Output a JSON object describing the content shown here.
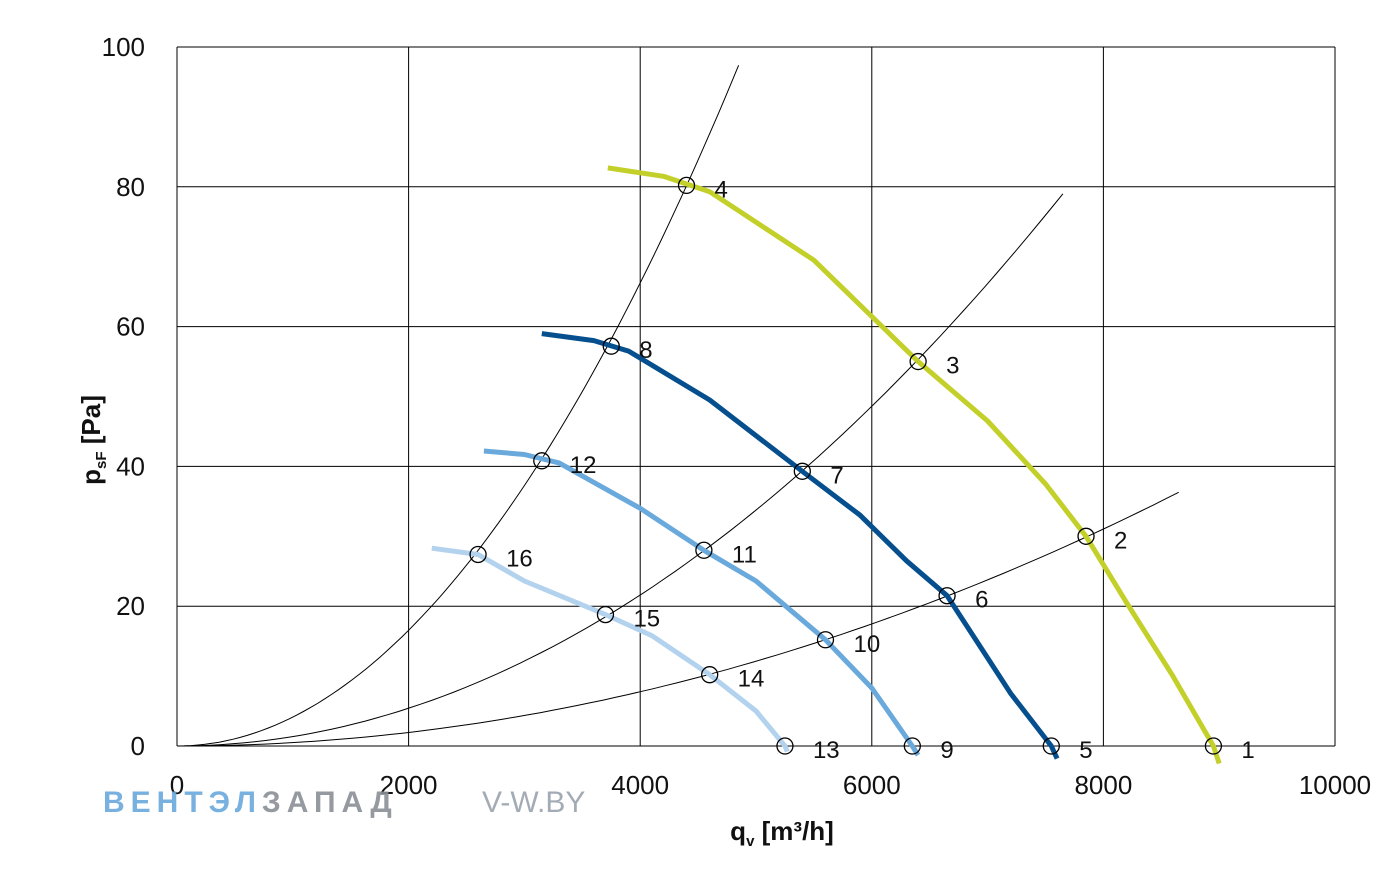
{
  "chart_data": {
    "type": "line",
    "title": "",
    "xlabel": "q",
    "xlabel_sub": "v",
    "xlabel_unit": " [m³/h]",
    "ylabel": "p",
    "ylabel_sub": "sF",
    "ylabel_unit": " [Pa]",
    "xlim": [
      0,
      10000
    ],
    "ylim": [
      0,
      100
    ],
    "xticks": [
      0,
      2000,
      4000,
      6000,
      8000,
      10000
    ],
    "yticks": [
      0,
      20,
      40,
      60,
      80,
      100
    ],
    "grid": true,
    "colors": {
      "fan1": "#c3d02a",
      "fan2": "#054f8e",
      "fan3": "#6aa9dc",
      "fan4": "#b3d2ee",
      "system": "#000000",
      "grid": "#000000"
    },
    "series": [
      {
        "color_key": "fan1",
        "points": [
          [
            3720,
            82.7
          ],
          [
            4200,
            81.5
          ],
          [
            4600,
            79.3
          ],
          [
            5500,
            69.5
          ],
          [
            6400,
            55
          ],
          [
            7000,
            46.5
          ],
          [
            7500,
            37.5
          ],
          [
            7850,
            30
          ],
          [
            8200,
            20.5
          ],
          [
            8600,
            10
          ],
          [
            8950,
            0
          ],
          [
            9000,
            -2.5
          ]
        ]
      },
      {
        "color_key": "fan2",
        "points": [
          [
            3150,
            59
          ],
          [
            3600,
            58
          ],
          [
            3900,
            56.5
          ],
          [
            4600,
            49.5
          ],
          [
            5400,
            39.3
          ],
          [
            5900,
            33
          ],
          [
            6300,
            26.5
          ],
          [
            6650,
            21.5
          ],
          [
            7200,
            7.5
          ],
          [
            7550,
            0
          ],
          [
            7600,
            -1.8
          ]
        ]
      },
      {
        "color_key": "fan3",
        "points": [
          [
            2650,
            42.2
          ],
          [
            3000,
            41.7
          ],
          [
            3300,
            40.5
          ],
          [
            4000,
            34
          ],
          [
            4550,
            28
          ],
          [
            5000,
            23.6
          ],
          [
            5600,
            15.2
          ],
          [
            6000,
            8.3
          ],
          [
            6350,
            0
          ],
          [
            6400,
            -1.3
          ]
        ]
      },
      {
        "color_key": "fan4",
        "points": [
          [
            2200,
            28.3
          ],
          [
            2600,
            27.4
          ],
          [
            3000,
            23.6
          ],
          [
            3700,
            18.8
          ],
          [
            4100,
            15.8
          ],
          [
            4600,
            10.2
          ],
          [
            5000,
            5
          ],
          [
            5250,
            0
          ],
          [
            5270,
            -0.8
          ]
        ]
      }
    ],
    "system_curves": [
      {
        "k": 4.14,
        "xmax": 4850
      },
      {
        "k": 1.35,
        "xmax": 7650
      },
      {
        "k": 0.485,
        "xmax": 8650
      }
    ],
    "points": [
      {
        "label": "1",
        "x": 8950,
        "y": 0
      },
      {
        "label": "2",
        "x": 7850,
        "y": 30
      },
      {
        "label": "3",
        "x": 6400,
        "y": 55
      },
      {
        "label": "4",
        "x": 4400,
        "y": 80.2
      },
      {
        "label": "5",
        "x": 7550,
        "y": 0
      },
      {
        "label": "6",
        "x": 6650,
        "y": 21.5
      },
      {
        "label": "7",
        "x": 5400,
        "y": 39.3
      },
      {
        "label": "8",
        "x": 3750,
        "y": 57.2
      },
      {
        "label": "9",
        "x": 6350,
        "y": 0
      },
      {
        "label": "10",
        "x": 5600,
        "y": 15.2
      },
      {
        "label": "11",
        "x": 4550,
        "y": 28
      },
      {
        "label": "12",
        "x": 3150,
        "y": 40.8
      },
      {
        "label": "13",
        "x": 5250,
        "y": 0
      },
      {
        "label": "14",
        "x": 4600,
        "y": 10.2
      },
      {
        "label": "15",
        "x": 3700,
        "y": 18.8
      },
      {
        "label": "16",
        "x": 2600,
        "y": 27.4
      }
    ]
  },
  "watermark": {
    "part1": "ВЕНТЭЛ",
    "part2": "ЗАПАД",
    "site": "V-W.BY",
    "color1": "#6aa9dc",
    "color2": "#8a8f96"
  }
}
